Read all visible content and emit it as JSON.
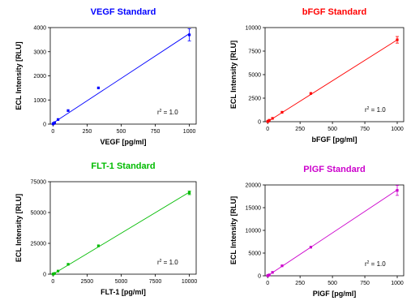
{
  "chart_data": [
    {
      "type": "scatter",
      "title": "VEGF Standard",
      "xlabel": "VEGF [pg/ml]",
      "ylabel": "ECL Intensity [RLU]",
      "xlim": [
        -20,
        1050
      ],
      "ylim": [
        0,
        4000
      ],
      "xticks": [
        0,
        250,
        500,
        750,
        1000
      ],
      "yticks": [
        0,
        1000,
        2000,
        3000,
        4000
      ],
      "color": "#0000ff",
      "x": [
        0.5,
        1.4,
        4.1,
        12.3,
        37,
        111,
        333,
        1000
      ],
      "y": [
        10,
        15,
        30,
        60,
        190,
        560,
        1500,
        3700
      ],
      "error_at_max": 250,
      "fit": {
        "x0": 0,
        "y0": 40,
        "x1": 1000,
        "y1": 3750
      },
      "r2_prefix": "r",
      "r2_sup": "2",
      "r2_value": " = 1.0"
    },
    {
      "type": "scatter",
      "title": "bFGF Standard",
      "xlabel": "bFGF [pg/ml]",
      "ylabel": "ECL Intensity [RLU]",
      "xlim": [
        -20,
        1050
      ],
      "ylim": [
        0,
        10000
      ],
      "xticks": [
        0,
        250,
        500,
        750,
        1000
      ],
      "yticks": [
        0,
        2500,
        5000,
        7500,
        10000
      ],
      "color": "#ff0000",
      "x": [
        0.5,
        1.4,
        4.1,
        12.3,
        37,
        111,
        333,
        1000
      ],
      "y": [
        20,
        30,
        60,
        150,
        350,
        1000,
        3000,
        8700
      ],
      "error_at_max": 350,
      "fit": {
        "x0": 0,
        "y0": 0,
        "x1": 1000,
        "y1": 8700
      },
      "r2_prefix": "r",
      "r2_sup": "2",
      "r2_value": " = 1.0"
    },
    {
      "type": "scatter",
      "title": "FLT-1 Standard",
      "xlabel": "FLT-1 [pg/ml]",
      "ylabel": "ECL Intensity [RLU]",
      "xlim": [
        -200,
        10500
      ],
      "ylim": [
        0,
        75000
      ],
      "xticks": [
        0,
        2500,
        5000,
        7500,
        10000
      ],
      "yticks": [
        0,
        25000,
        50000,
        75000
      ],
      "color": "#00bb00",
      "x": [
        5,
        14,
        41,
        123,
        370,
        1111,
        3333,
        10000
      ],
      "y": [
        50,
        100,
        250,
        600,
        2500,
        8000,
        23000,
        66000
      ],
      "error_at_max": 1500,
      "fit": {
        "x0": 0,
        "y0": 0,
        "x1": 10000,
        "y1": 66500
      },
      "r2_prefix": "r",
      "r2_sup": "2",
      "r2_value": " = 1.0"
    },
    {
      "type": "scatter",
      "title": "PlGF Standard",
      "xlabel": "PlGF [pg/ml]",
      "ylabel": "ECL Intensity [RLU]",
      "xlim": [
        -20,
        1050
      ],
      "ylim": [
        0,
        20000
      ],
      "xticks": [
        0,
        250,
        500,
        750,
        1000
      ],
      "yticks": [
        0,
        5000,
        10000,
        15000,
        20000
      ],
      "color": "#cc00cc",
      "x": [
        0.5,
        1.4,
        4.1,
        12.3,
        37,
        111,
        333,
        1000
      ],
      "y": [
        20,
        40,
        80,
        200,
        750,
        2200,
        6300,
        18800
      ],
      "error_at_max": 1100,
      "fit": {
        "x0": 0,
        "y0": 0,
        "x1": 1000,
        "y1": 18900
      },
      "r2_prefix": "r",
      "r2_sup": "2",
      "r2_value": " = 1.0"
    }
  ]
}
